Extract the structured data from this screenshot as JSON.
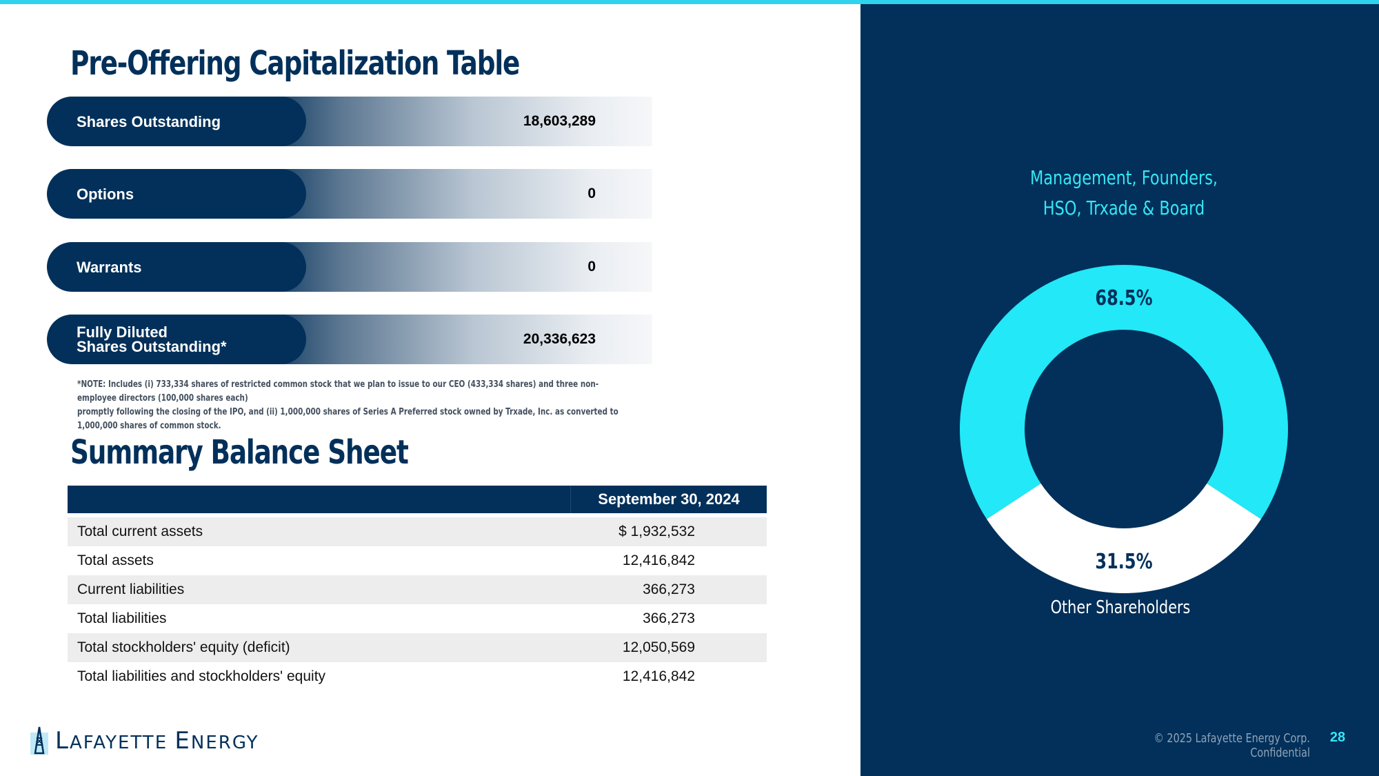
{
  "cap_table": {
    "title": "Pre-Offering Capitalization Table",
    "rows": [
      {
        "label_line1": "Shares Outstanding",
        "label_line2": "",
        "value": "18,603,289"
      },
      {
        "label_line1": "Options",
        "label_line2": "",
        "value": "0"
      },
      {
        "label_line1": "Warrants",
        "label_line2": "",
        "value": "0"
      },
      {
        "label_line1": "Fully Diluted",
        "label_line2": "Shares Outstanding*",
        "value": "20,336,623"
      }
    ],
    "note_line1": "*NOTE: Includes (i) 733,334 shares of restricted common stock that we plan to issue to our CEO (433,334 shares) and three non-employee directors (100,000 shares each)",
    "note_line2": "promptly following the closing of the IPO, and (ii) 1,000,000 shares of Series A Preferred stock owned by Trxade, Inc. as converted to 1,000,000 shares of common stock."
  },
  "balance_sheet": {
    "title": "Summary Balance Sheet",
    "column_header": "September 30, 2024",
    "rows": [
      {
        "label": "Total current assets",
        "value": "$ 1,932,532"
      },
      {
        "label": "Total assets",
        "value": "12,416,842"
      },
      {
        "label": "Current liabilities",
        "value": "366,273"
      },
      {
        "label": "Total liabilities",
        "value": "366,273"
      },
      {
        "label": "Total stockholders' equity (deficit)",
        "value": "12,050,569"
      },
      {
        "label": "Total liabilities and stockholders' equity",
        "value": "12,416,842"
      }
    ]
  },
  "chart_data": {
    "type": "pie",
    "title": "",
    "categories": [
      "Management, Founders, HSO, Trxade & Board",
      "Other Shareholders"
    ],
    "values": [
      68.5,
      31.5
    ],
    "labels": [
      "68.5%",
      "31.5%"
    ],
    "colors": [
      "#22e8f7",
      "#ffffff"
    ],
    "hole_color": "#02305a",
    "category_label_line1": "Management, Founders,",
    "category_label_line2": "HSO, Trxade & Board",
    "other_label": "Other Shareholders"
  },
  "footer": {
    "logo_initial": "L",
    "logo_rest": "AFAYETTE",
    "logo_word2_initial": "E",
    "logo_word2_rest": "NERGY",
    "confidential": "© 2025 Lafayette Energy Corp. Confidential",
    "page_number": "28"
  },
  "colors": {
    "navy": "#02305a",
    "cyan": "#22e8f7",
    "top_rule": "#2fd3ee"
  }
}
